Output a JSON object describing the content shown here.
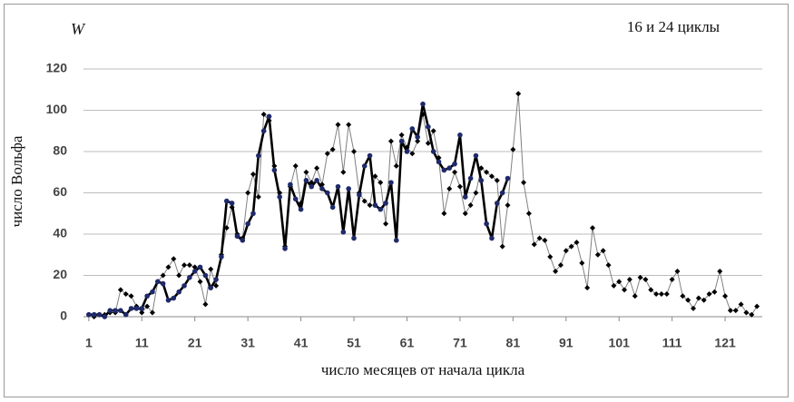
{
  "chart_data": {
    "type": "line",
    "title": "16 и 24 циклы",
    "y_symbol": "W",
    "y_label": "число Вольфа",
    "x_label": "число месяцев от начала цикла",
    "x": [
      1,
      2,
      3,
      4,
      5,
      6,
      7,
      8,
      9,
      10,
      11,
      12,
      13,
      14,
      15,
      16,
      17,
      18,
      19,
      20,
      21,
      22,
      23,
      24,
      25,
      26,
      27,
      28,
      29,
      30,
      31,
      32,
      33,
      34,
      35,
      36,
      37,
      38,
      39,
      40,
      41,
      42,
      43,
      44,
      45,
      46,
      47,
      48,
      49,
      50,
      51,
      52,
      53,
      54,
      55,
      56,
      57,
      58,
      59,
      60,
      61,
      62,
      63,
      64,
      65,
      66,
      67,
      68,
      69,
      70,
      71,
      72,
      73,
      74,
      75,
      76,
      77,
      78,
      79,
      80,
      81,
      82,
      83,
      84,
      85,
      86,
      87,
      88,
      89,
      90,
      91,
      92,
      93,
      94,
      95,
      96,
      97,
      98,
      99,
      100,
      101,
      102,
      103,
      104,
      105,
      106,
      107,
      108,
      109,
      110,
      111,
      112,
      113,
      114,
      115,
      116,
      117,
      118,
      119,
      120,
      121,
      122,
      123,
      124,
      125,
      126,
      127
    ],
    "series": [
      {
        "color": "#808080",
        "marker_color": "#000000",
        "marker": "diamond",
        "width": 1,
        "values": [
          1,
          0,
          1,
          1,
          2,
          2,
          13,
          11,
          10,
          5,
          2,
          5,
          2,
          17,
          20,
          24,
          28,
          20,
          25,
          25,
          24,
          17,
          6,
          23,
          15,
          30,
          43,
          53,
          40,
          38,
          60,
          69,
          58,
          98,
          95,
          73,
          60,
          34,
          63,
          73,
          55,
          70,
          65,
          72,
          64,
          79,
          81,
          93,
          70,
          93,
          80,
          60,
          56,
          54,
          68,
          65,
          45,
          85,
          73,
          88,
          82,
          79,
          85,
          98,
          84,
          90,
          77,
          50,
          62,
          70,
          63,
          50,
          54,
          60,
          72,
          70,
          68,
          66,
          34,
          54,
          81,
          108,
          65,
          50,
          35,
          38,
          37,
          29,
          22,
          25,
          32,
          34,
          36,
          26,
          14,
          43,
          30,
          32,
          25,
          15,
          17,
          13,
          18,
          10,
          19,
          18,
          13,
          11,
          11,
          11,
          18,
          22,
          10,
          8,
          4,
          9,
          8,
          11,
          12,
          22,
          10,
          3,
          3,
          6,
          2,
          1,
          5
        ]
      },
      {
        "color": "#000000",
        "marker_color": "#1f2a6b",
        "marker": "circle",
        "width": 2.6,
        "values": [
          1,
          1,
          1,
          0,
          3,
          3,
          3,
          1,
          4,
          4,
          4,
          10,
          12,
          17,
          16,
          8,
          9,
          12,
          15,
          19,
          22,
          24,
          20,
          14,
          18,
          29,
          56,
          55,
          39,
          37,
          45,
          50,
          78,
          90,
          97,
          71,
          58,
          33,
          64,
          57,
          52,
          66,
          63,
          66,
          62,
          60,
          53,
          63,
          41,
          62,
          38,
          59,
          73,
          78,
          54,
          52,
          55,
          65,
          37,
          85,
          80,
          91,
          87,
          103,
          92,
          80,
          75,
          71,
          72,
          74,
          88,
          58,
          67,
          78,
          66,
          45,
          38,
          55,
          60,
          67,
          null,
          null,
          null,
          null,
          null,
          null,
          null,
          null,
          null,
          null,
          null,
          null,
          null,
          null,
          null,
          null,
          null,
          null,
          null,
          null,
          null,
          null,
          null,
          null,
          null,
          null,
          null,
          null,
          null,
          null,
          null,
          null,
          null,
          null,
          null,
          null,
          null,
          null,
          null,
          null,
          null,
          null,
          null,
          null,
          null,
          null,
          null
        ]
      }
    ],
    "xlim": [
      0,
      128
    ],
    "xticks": [
      1,
      11,
      21,
      31,
      41,
      51,
      61,
      71,
      81,
      91,
      101,
      111,
      121
    ],
    "ylim": [
      0,
      120
    ],
    "yticks": [
      0,
      20,
      40,
      60,
      80,
      100,
      120
    ],
    "grid": true
  }
}
